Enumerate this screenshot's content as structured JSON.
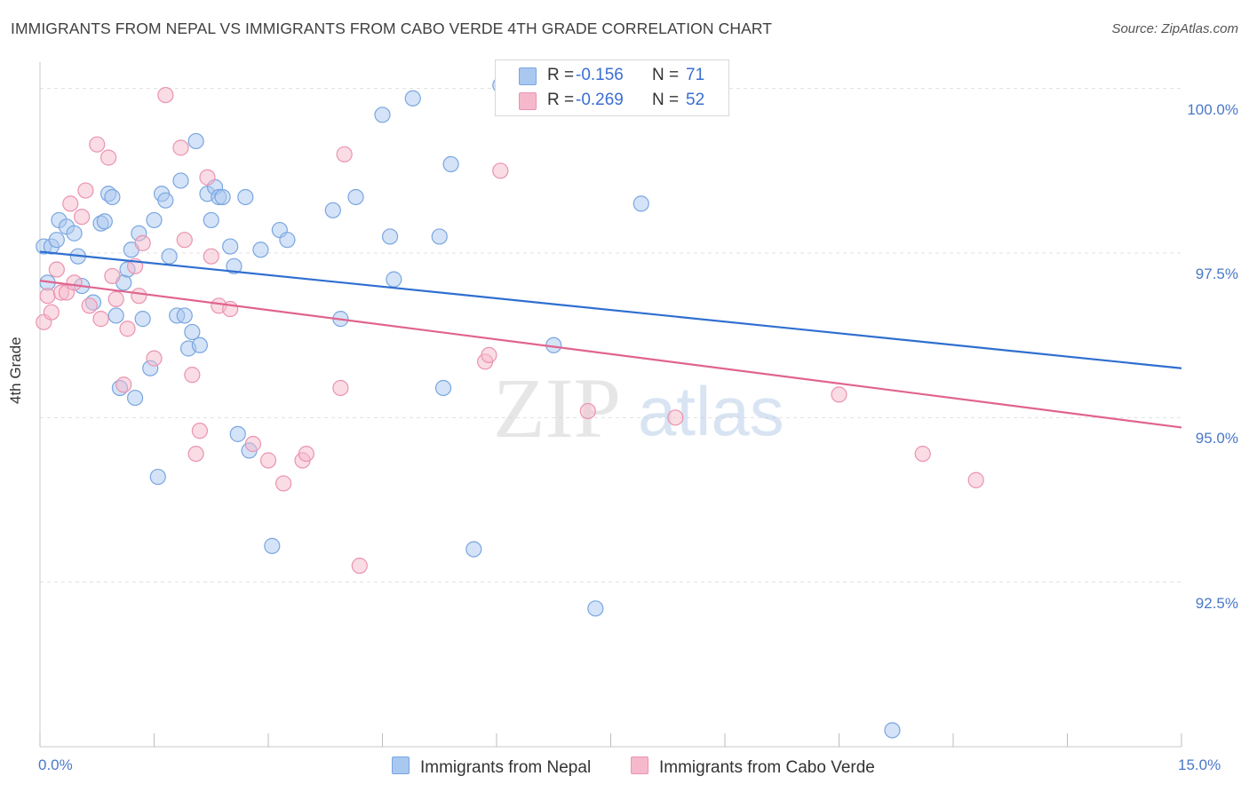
{
  "title": "IMMIGRANTS FROM NEPAL VS IMMIGRANTS FROM CABO VERDE 4TH GRADE CORRELATION CHART",
  "source": "Source: ZipAtlas.com",
  "watermark": {
    "zip": "ZIP",
    "atlas": "atlas"
  },
  "colors": {
    "nepal_fill": "#a9c8f0",
    "nepal_stroke": "#7aa6e0",
    "nepal_line": "#2f6fd0",
    "cabo_fill": "#f6b9cc",
    "cabo_stroke": "#eb93b0",
    "cabo_line": "#e0648d",
    "tick_text": "#4a78c8",
    "grid": "#e0e0e0"
  },
  "legend_top": [
    {
      "r_label": "R =",
      "r_value": "-0.156",
      "n_label": "N =",
      "n_value": "71"
    },
    {
      "r_label": "R =",
      "r_value": "-0.269",
      "n_label": "N =",
      "n_value": "52"
    }
  ],
  "chart_data": {
    "type": "scatter",
    "title": "IMMIGRANTS FROM NEPAL VS IMMIGRANTS FROM CABO VERDE 4TH GRADE CORRELATION CHART",
    "xlabel": "",
    "ylabel": "4th Grade",
    "xlim": [
      0,
      15
    ],
    "ylim": [
      90.0,
      100.4
    ],
    "x_tick_labels": [
      "0.0%",
      "15.0%"
    ],
    "y_ticks": [
      92.5,
      95.0,
      97.5,
      100.0
    ],
    "y_tick_labels": [
      "92.5%",
      "95.0%",
      "97.5%",
      "100.0%"
    ],
    "grid": true,
    "legend_position": "bottom",
    "series": [
      {
        "name": "Immigrants from Nepal",
        "R": -0.156,
        "N": 71,
        "trend": [
          [
            0,
            97.52
          ],
          [
            15,
            95.75
          ]
        ],
        "points": [
          [
            0.05,
            97.6
          ],
          [
            0.1,
            97.05
          ],
          [
            0.15,
            97.6
          ],
          [
            0.22,
            97.7
          ],
          [
            0.25,
            98.0
          ],
          [
            0.35,
            97.9
          ],
          [
            0.45,
            97.8
          ],
          [
            0.5,
            97.45
          ],
          [
            0.55,
            97.0
          ],
          [
            0.7,
            96.75
          ],
          [
            0.8,
            97.95
          ],
          [
            0.85,
            97.98
          ],
          [
            0.9,
            98.4
          ],
          [
            0.95,
            98.35
          ],
          [
            1.0,
            96.55
          ],
          [
            1.05,
            95.45
          ],
          [
            1.1,
            97.05
          ],
          [
            1.15,
            97.25
          ],
          [
            1.2,
            97.55
          ],
          [
            1.25,
            95.3
          ],
          [
            1.3,
            97.8
          ],
          [
            1.35,
            96.5
          ],
          [
            1.45,
            95.75
          ],
          [
            1.5,
            98.0
          ],
          [
            1.55,
            94.1
          ],
          [
            1.6,
            98.4
          ],
          [
            1.65,
            98.3
          ],
          [
            1.7,
            97.45
          ],
          [
            1.8,
            96.55
          ],
          [
            1.85,
            98.6
          ],
          [
            1.9,
            96.55
          ],
          [
            1.95,
            96.05
          ],
          [
            2.0,
            96.3
          ],
          [
            2.05,
            99.2
          ],
          [
            2.1,
            96.1
          ],
          [
            2.2,
            98.4
          ],
          [
            2.25,
            98.0
          ],
          [
            2.3,
            98.5
          ],
          [
            2.35,
            98.35
          ],
          [
            2.4,
            98.35
          ],
          [
            2.5,
            97.6
          ],
          [
            2.55,
            97.3
          ],
          [
            2.6,
            94.75
          ],
          [
            2.7,
            98.35
          ],
          [
            2.75,
            94.5
          ],
          [
            2.9,
            97.55
          ],
          [
            3.05,
            93.05
          ],
          [
            3.15,
            97.85
          ],
          [
            3.25,
            97.7
          ],
          [
            3.85,
            98.15
          ],
          [
            3.95,
            96.5
          ],
          [
            4.15,
            98.35
          ],
          [
            4.5,
            99.6
          ],
          [
            4.6,
            97.75
          ],
          [
            4.65,
            97.1
          ],
          [
            4.9,
            99.85
          ],
          [
            5.25,
            97.75
          ],
          [
            5.3,
            95.45
          ],
          [
            5.4,
            98.85
          ],
          [
            5.7,
            93.0
          ],
          [
            6.05,
            100.05
          ],
          [
            6.1,
            99.75
          ],
          [
            6.75,
            96.1
          ],
          [
            7.05,
            100.05
          ],
          [
            7.3,
            92.1
          ],
          [
            7.9,
            98.25
          ],
          [
            11.2,
            90.25
          ]
        ]
      },
      {
        "name": "Immigrants from Cabo Verde",
        "R": -0.269,
        "N": 52,
        "trend": [
          [
            0,
            97.08
          ],
          [
            15,
            94.85
          ]
        ],
        "points": [
          [
            0.05,
            96.45
          ],
          [
            0.1,
            96.85
          ],
          [
            0.15,
            96.6
          ],
          [
            0.22,
            97.25
          ],
          [
            0.28,
            96.9
          ],
          [
            0.35,
            96.9
          ],
          [
            0.4,
            98.25
          ],
          [
            0.45,
            97.05
          ],
          [
            0.55,
            98.05
          ],
          [
            0.6,
            98.45
          ],
          [
            0.65,
            96.7
          ],
          [
            0.75,
            99.15
          ],
          [
            0.8,
            96.5
          ],
          [
            0.9,
            98.95
          ],
          [
            0.95,
            97.15
          ],
          [
            1.0,
            96.8
          ],
          [
            1.1,
            95.5
          ],
          [
            1.15,
            96.35
          ],
          [
            1.25,
            97.3
          ],
          [
            1.3,
            96.85
          ],
          [
            1.35,
            97.65
          ],
          [
            1.5,
            95.9
          ],
          [
            1.65,
            99.9
          ],
          [
            1.85,
            99.1
          ],
          [
            1.9,
            97.7
          ],
          [
            2.0,
            95.65
          ],
          [
            2.05,
            94.45
          ],
          [
            2.1,
            94.8
          ],
          [
            2.2,
            98.65
          ],
          [
            2.25,
            97.45
          ],
          [
            2.35,
            96.7
          ],
          [
            2.5,
            96.65
          ],
          [
            2.8,
            94.6
          ],
          [
            3.0,
            94.35
          ],
          [
            3.2,
            94.0
          ],
          [
            3.45,
            94.35
          ],
          [
            3.5,
            94.45
          ],
          [
            3.95,
            95.45
          ],
          [
            4.0,
            99.0
          ],
          [
            4.2,
            92.75
          ],
          [
            5.85,
            95.85
          ],
          [
            5.9,
            95.95
          ],
          [
            6.05,
            98.75
          ],
          [
            7.2,
            95.1
          ],
          [
            8.35,
            95.0
          ],
          [
            10.5,
            95.35
          ],
          [
            11.6,
            94.45
          ],
          [
            12.3,
            94.05
          ]
        ]
      }
    ]
  },
  "legend_bottom": [
    "Immigrants from Nepal",
    "Immigrants from Cabo Verde"
  ]
}
